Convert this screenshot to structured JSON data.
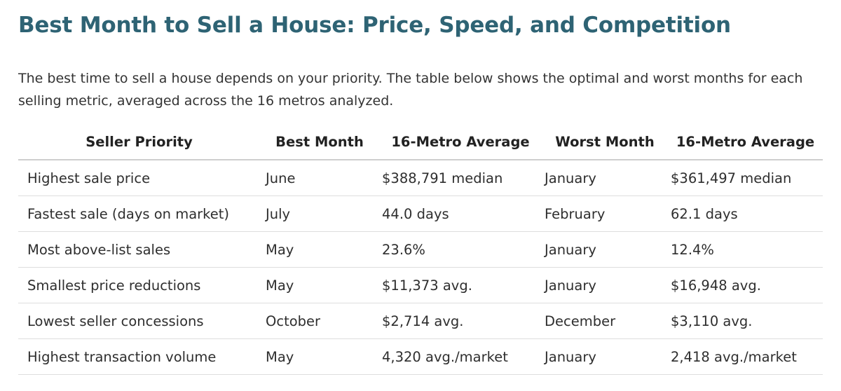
{
  "title": "Best Month to Sell a House: Price, Speed, and Competition",
  "intro": "The best time to sell a house depends on your priority. The table below shows the optimal and worst months for each selling metric, averaged across the 16 metros analyzed.",
  "table": {
    "headers": [
      "Seller Priority",
      "Best Month",
      "16-Metro Average",
      "Worst Month",
      "16-Metro Average"
    ],
    "rows": [
      [
        "Highest sale price",
        "June",
        "$388,791 median",
        "January",
        "$361,497 median"
      ],
      [
        "Fastest sale (days on market)",
        "July",
        "44.0 days",
        "February",
        "62.1 days"
      ],
      [
        "Most above-list sales",
        "May",
        "23.6%",
        "January",
        "12.4%"
      ],
      [
        "Smallest price reductions",
        "May",
        "$11,373 avg.",
        "January",
        "$16,948 avg."
      ],
      [
        "Lowest seller concessions",
        "October",
        "$2,714 avg.",
        "December",
        "$3,110 avg."
      ],
      [
        "Highest transaction volume",
        "May",
        "4,320 avg./market",
        "January",
        "2,418 avg./market"
      ]
    ]
  }
}
